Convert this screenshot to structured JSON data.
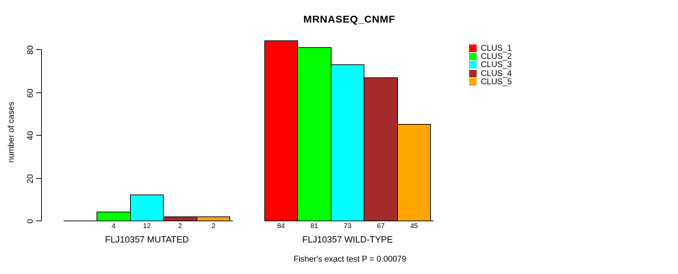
{
  "chart_data": {
    "type": "bar",
    "title": "MRNASEQ_CNMF",
    "ylabel": "number of cases",
    "xlabel": "",
    "yticks": [
      0,
      20,
      40,
      60,
      80
    ],
    "ylim": [
      0,
      88
    ],
    "grid": false,
    "legend_position": "top-right",
    "series_legend": [
      {
        "label": "CLUS_1",
        "color": "#ff0000"
      },
      {
        "label": "CLUS_2",
        "color": "#00ff00"
      },
      {
        "label": "CLUS_3",
        "color": "#00ffff"
      },
      {
        "label": "CLUS_4",
        "color": "#a52a2a"
      },
      {
        "label": "CLUS_5",
        "color": "#ffa500"
      }
    ],
    "groups": [
      {
        "label": "FLJ10357 MUTATED",
        "values": [
          0,
          4,
          12,
          2,
          2
        ],
        "value_labels": [
          "",
          "4",
          "12",
          "2",
          "2"
        ]
      },
      {
        "label": "FLJ10357 WILD-TYPE",
        "values": [
          84,
          81,
          73,
          67,
          45
        ],
        "value_labels": [
          "84",
          "81",
          "73",
          "67",
          "45"
        ]
      }
    ],
    "footnote": "Fisher's exact test P = 0.00079"
  }
}
